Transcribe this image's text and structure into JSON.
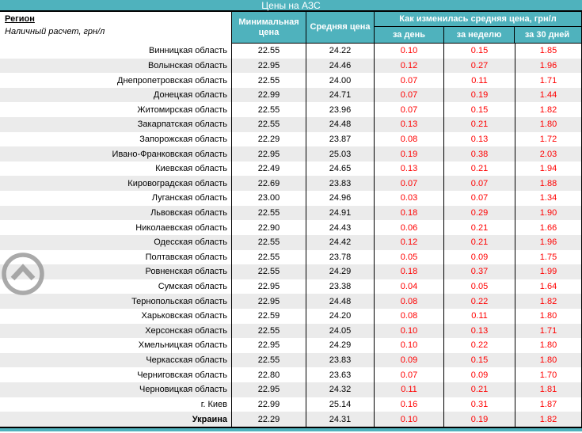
{
  "title": "Цены на АЗС",
  "header": {
    "region_label": "Регион",
    "region_note": "Наличный расчет, грн/л",
    "col_min": "Минимальная цена",
    "col_avg": "Средняя цена",
    "change_group": "Как изменилась средняя цена, грн/л",
    "change_cols": [
      "за день",
      "за неделю",
      "за 30 дней"
    ]
  },
  "colors": {
    "accent_teal": "#4fb2bd",
    "change_red": "#ff0000",
    "stripe_gray": "#ebebeb"
  },
  "icons": {
    "scroll_top": "chevron-up-circle"
  },
  "rows": [
    {
      "region": "Винницкая область",
      "min": "22.55",
      "avg": "24.22",
      "day": "0.10",
      "week": "0.15",
      "month": "1.85"
    },
    {
      "region": "Волынская область",
      "min": "22.95",
      "avg": "24.46",
      "day": "0.12",
      "week": "0.27",
      "month": "1.96"
    },
    {
      "region": "Днепропетровская область",
      "min": "22.55",
      "avg": "24.00",
      "day": "0.07",
      "week": "0.11",
      "month": "1.71"
    },
    {
      "region": "Донецкая область",
      "min": "22.99",
      "avg": "24.71",
      "day": "0.07",
      "week": "0.19",
      "month": "1.44"
    },
    {
      "region": "Житомирская область",
      "min": "22.55",
      "avg": "23.96",
      "day": "0.07",
      "week": "0.15",
      "month": "1.82"
    },
    {
      "region": "Закарпатская область",
      "min": "22.55",
      "avg": "24.48",
      "day": "0.13",
      "week": "0.21",
      "month": "1.80"
    },
    {
      "region": "Запорожская область",
      "min": "22.29",
      "avg": "23.87",
      "day": "0.08",
      "week": "0.13",
      "month": "1.72"
    },
    {
      "region": "Ивано-Франковская область",
      "min": "22.95",
      "avg": "25.03",
      "day": "0.19",
      "week": "0.38",
      "month": "2.03"
    },
    {
      "region": "Киевская область",
      "min": "22.49",
      "avg": "24.65",
      "day": "0.13",
      "week": "0.21",
      "month": "1.94"
    },
    {
      "region": "Кировоградская область",
      "min": "22.69",
      "avg": "23.83",
      "day": "0.07",
      "week": "0.07",
      "month": "1.88"
    },
    {
      "region": "Луганская область",
      "min": "23.00",
      "avg": "24.96",
      "day": "0.03",
      "week": "0.07",
      "month": "1.34"
    },
    {
      "region": "Львовская область",
      "min": "22.55",
      "avg": "24.91",
      "day": "0.18",
      "week": "0.29",
      "month": "1.90"
    },
    {
      "region": "Николаевская область",
      "min": "22.90",
      "avg": "24.43",
      "day": "0.06",
      "week": "0.21",
      "month": "1.66"
    },
    {
      "region": "Одесская область",
      "min": "22.55",
      "avg": "24.42",
      "day": "0.12",
      "week": "0.21",
      "month": "1.96"
    },
    {
      "region": "Полтавская область",
      "min": "22.55",
      "avg": "23.78",
      "day": "0.05",
      "week": "0.09",
      "month": "1.75"
    },
    {
      "region": "Ровненская область",
      "min": "22.55",
      "avg": "24.29",
      "day": "0.18",
      "week": "0.37",
      "month": "1.99"
    },
    {
      "region": "Сумская область",
      "min": "22.95",
      "avg": "23.38",
      "day": "0.04",
      "week": "0.05",
      "month": "1.64"
    },
    {
      "region": "Тернопольская область",
      "min": "22.95",
      "avg": "24.48",
      "day": "0.08",
      "week": "0.22",
      "month": "1.82"
    },
    {
      "region": "Харьковская область",
      "min": "22.59",
      "avg": "24.20",
      "day": "0.08",
      "week": "0.11",
      "month": "1.80"
    },
    {
      "region": "Херсонская область",
      "min": "22.55",
      "avg": "24.05",
      "day": "0.10",
      "week": "0.13",
      "month": "1.71"
    },
    {
      "region": "Хмельницкая область",
      "min": "22.95",
      "avg": "24.29",
      "day": "0.10",
      "week": "0.22",
      "month": "1.80"
    },
    {
      "region": "Черкасская область",
      "min": "22.55",
      "avg": "23.83",
      "day": "0.09",
      "week": "0.15",
      "month": "1.80"
    },
    {
      "region": "Черниговская область",
      "min": "22.80",
      "avg": "23.63",
      "day": "0.07",
      "week": "0.09",
      "month": "1.70"
    },
    {
      "region": "Черновицкая область",
      "min": "22.95",
      "avg": "24.32",
      "day": "0.11",
      "week": "0.21",
      "month": "1.81"
    },
    {
      "region": "г. Киев",
      "min": "22.99",
      "avg": "25.14",
      "day": "0.16",
      "week": "0.31",
      "month": "1.87"
    },
    {
      "region": "Украина",
      "min": "22.29",
      "avg": "24.31",
      "day": "0.10",
      "week": "0.19",
      "month": "1.82",
      "bold": true
    }
  ]
}
